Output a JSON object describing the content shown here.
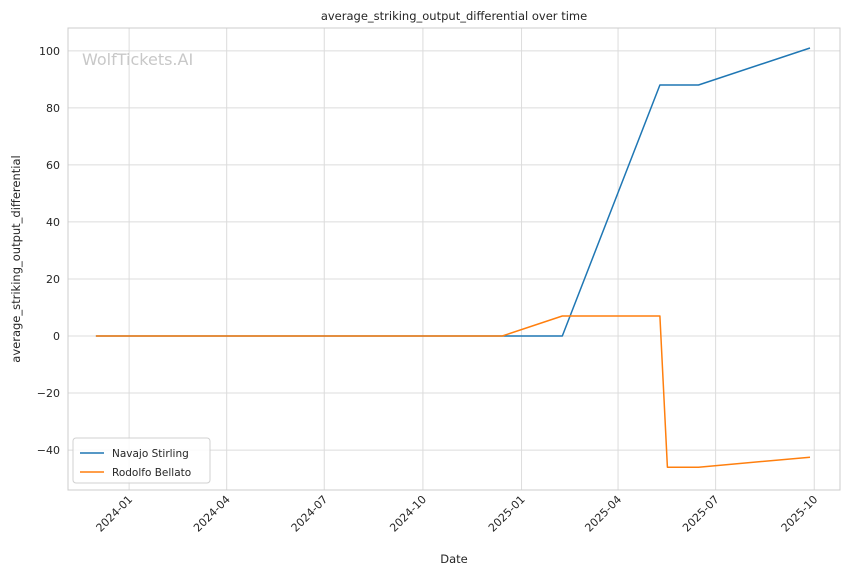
{
  "chart_data": {
    "type": "line",
    "title": "average_striking_output_differential over time",
    "xlabel": "Date",
    "ylabel": "average_striking_output_differential",
    "watermark": "WolfTickets.AI",
    "x_ticks": [
      "2024-01",
      "2024-04",
      "2024-07",
      "2024-10",
      "2025-01",
      "2025-04",
      "2025-07",
      "2025-10"
    ],
    "y_ticks": [
      100,
      80,
      60,
      40,
      20,
      0,
      -20,
      -40
    ],
    "y_tick_labels": [
      "100",
      "80",
      "60",
      "40",
      "20",
      "0",
      "−20",
      "−40"
    ],
    "xlim": [
      "2023-11-05",
      "2025-10-25"
    ],
    "ylim": [
      -54,
      108
    ],
    "grid": true,
    "legend_position": "lower-left",
    "series": [
      {
        "name": "Navajo Stirling",
        "color": "#1f77b4",
        "points": [
          {
            "x": "2023-12-01",
            "y": 0
          },
          {
            "x": "2024-12-14",
            "y": 0
          },
          {
            "x": "2025-02-08",
            "y": 0
          },
          {
            "x": "2025-05-10",
            "y": 88
          },
          {
            "x": "2025-06-15",
            "y": 88
          },
          {
            "x": "2025-09-27",
            "y": 101
          }
        ]
      },
      {
        "name": "Rodolfo Bellato",
        "color": "#ff7f0e",
        "points": [
          {
            "x": "2023-12-01",
            "y": 0
          },
          {
            "x": "2024-12-14",
            "y": 0
          },
          {
            "x": "2025-02-08",
            "y": 7
          },
          {
            "x": "2025-05-10",
            "y": 7
          },
          {
            "x": "2025-05-17",
            "y": -46
          },
          {
            "x": "2025-06-15",
            "y": -46
          },
          {
            "x": "2025-09-27",
            "y": -42.5
          }
        ]
      }
    ]
  }
}
